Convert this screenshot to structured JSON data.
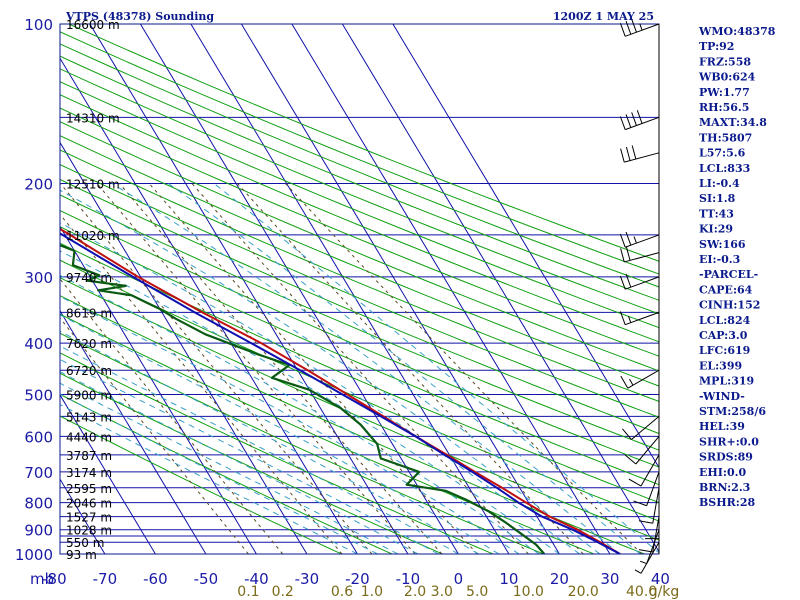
{
  "header": {
    "station": "VTPS (48378) Sounding",
    "time": "1200Z  1 MAY 25"
  },
  "units": {
    "pressure": "mb",
    "mixing_ratio": "g/kg"
  },
  "colors": {
    "frame": "#0a1a8c",
    "isobar": "#1212a8",
    "isotherm": "#1212a8",
    "dry_adiabat": "#12a012",
    "mixing_ratio": "#5a4a20",
    "moist_adiabat": "#3aa0c8",
    "temperature": "#c01010",
    "parcel": "#1010b0",
    "dewpoint": "#0a5a14",
    "wind": "#000000"
  },
  "chart_data": {
    "type": "skew-t",
    "title": "VTPS (48378) Sounding",
    "pressure_levels_mb": [
      100,
      200,
      300,
      400,
      500,
      600,
      700,
      800,
      900,
      1000
    ],
    "pressure_lines_mb": [
      100,
      150,
      200,
      250,
      300,
      350,
      400,
      450,
      500,
      550,
      600,
      650,
      700,
      750,
      800,
      850,
      900,
      925,
      950,
      1000
    ],
    "temperature_ticks_c": [
      -80,
      -70,
      -60,
      -50,
      -40,
      -30,
      -20,
      -10,
      0,
      10,
      20,
      30,
      40
    ],
    "mixing_ratio_ticks_gkg": [
      "0.1",
      "0.2",
      "0.6",
      "1.0",
      "2.0",
      "3.0",
      "5.0",
      "10.0",
      "20.0",
      "40.0"
    ],
    "mixing_ratio_values": [
      0.1,
      0.2,
      0.6,
      1.0,
      2.0,
      3.0,
      5.0,
      10.0,
      20.0,
      40.0
    ],
    "height_labels": [
      {
        "p": 100,
        "text": "16600 m"
      },
      {
        "p": 150,
        "text": "14310 m"
      },
      {
        "p": 200,
        "text": "12510 m"
      },
      {
        "p": 250,
        "text": "11020 m"
      },
      {
        "p": 300,
        "text": "9740 m"
      },
      {
        "p": 350,
        "text": "8619 m"
      },
      {
        "p": 400,
        "text": "7620 m"
      },
      {
        "p": 450,
        "text": "6720 m"
      },
      {
        "p": 500,
        "text": "5900 m"
      },
      {
        "p": 550,
        "text": "5143 m"
      },
      {
        "p": 600,
        "text": "4440 m"
      },
      {
        "p": 650,
        "text": "3787 m"
      },
      {
        "p": 700,
        "text": "3174 m"
      },
      {
        "p": 750,
        "text": "2595 m"
      },
      {
        "p": 800,
        "text": "2046 m"
      },
      {
        "p": 850,
        "text": "1527 m"
      },
      {
        "p": 900,
        "text": "1028 m"
      },
      {
        "p": 950,
        "text": "550 m"
      },
      {
        "p": 1000,
        "text": "93 m"
      }
    ],
    "series": [
      {
        "name": "Temperature",
        "points": [
          [
            100,
            -82
          ],
          [
            120,
            -74
          ],
          [
            150,
            -63
          ],
          [
            200,
            -50
          ],
          [
            250,
            -39
          ],
          [
            300,
            -30.5
          ],
          [
            350,
            -22
          ],
          [
            400,
            -14
          ],
          [
            450,
            -8
          ],
          [
            500,
            -3
          ],
          [
            550,
            1.5
          ],
          [
            600,
            5.5
          ],
          [
            650,
            9.5
          ],
          [
            700,
            13
          ],
          [
            750,
            16.5
          ],
          [
            800,
            19.5
          ],
          [
            850,
            22.5
          ],
          [
            900,
            26.5
          ],
          [
            950,
            29.5
          ],
          [
            1000,
            32
          ]
        ]
      },
      {
        "name": "Parcel",
        "points": [
          [
            125,
            -80
          ],
          [
            150,
            -68
          ],
          [
            200,
            -52
          ],
          [
            250,
            -40.5
          ],
          [
            300,
            -31.5
          ],
          [
            350,
            -23.5
          ],
          [
            400,
            -16
          ],
          [
            450,
            -9.5
          ],
          [
            500,
            -4
          ],
          [
            550,
            1
          ],
          [
            600,
            5.5
          ],
          [
            650,
            9
          ],
          [
            700,
            12.5
          ],
          [
            750,
            15.5
          ],
          [
            800,
            18
          ],
          [
            850,
            21
          ],
          [
            900,
            25.5
          ],
          [
            950,
            29
          ],
          [
            1000,
            32
          ]
        ]
      },
      {
        "name": "Dewpoint",
        "points": [
          [
            120,
            -80
          ],
          [
            150,
            -73
          ],
          [
            180,
            -68
          ],
          [
            200,
            -60
          ],
          [
            220,
            -51
          ],
          [
            240,
            -48
          ],
          [
            250,
            -46
          ],
          [
            262,
            -42
          ],
          [
            268,
            -40
          ],
          [
            285,
            -42
          ],
          [
            298,
            -38
          ],
          [
            305,
            -41
          ],
          [
            312,
            -34
          ],
          [
            318,
            -40
          ],
          [
            325,
            -34
          ],
          [
            335,
            -32
          ],
          [
            345,
            -30
          ],
          [
            360,
            -28
          ],
          [
            385,
            -24
          ],
          [
            420,
            -16
          ],
          [
            440,
            -11
          ],
          [
            465,
            -16
          ],
          [
            490,
            -10
          ],
          [
            530,
            -6
          ],
          [
            570,
            -4
          ],
          [
            620,
            -3
          ],
          [
            660,
            -4
          ],
          [
            700,
            2
          ],
          [
            740,
            -2
          ],
          [
            760,
            5
          ],
          [
            790,
            8
          ],
          [
            830,
            11
          ],
          [
            870,
            13
          ],
          [
            920,
            15
          ],
          [
            960,
            16.5
          ],
          [
            1000,
            17
          ]
        ]
      }
    ],
    "wind_barbs": [
      {
        "p": 100,
        "dir": 250,
        "spd": 35
      },
      {
        "p": 150,
        "dir": 250,
        "spd": 40
      },
      {
        "p": 175,
        "dir": 255,
        "spd": 30
      },
      {
        "p": 250,
        "dir": 250,
        "spd": 25
      },
      {
        "p": 270,
        "dir": 255,
        "spd": 20
      },
      {
        "p": 300,
        "dir": 250,
        "spd": 20
      },
      {
        "p": 350,
        "dir": 250,
        "spd": 15
      },
      {
        "p": 450,
        "dir": 240,
        "spd": 15
      },
      {
        "p": 550,
        "dir": 230,
        "spd": 10
      },
      {
        "p": 600,
        "dir": 220,
        "spd": 10
      },
      {
        "p": 650,
        "dir": 210,
        "spd": 10
      },
      {
        "p": 700,
        "dir": 200,
        "spd": 10
      },
      {
        "p": 750,
        "dir": 190,
        "spd": 10
      },
      {
        "p": 800,
        "dir": 180,
        "spd": 10
      },
      {
        "p": 850,
        "dir": 190,
        "spd": 10
      },
      {
        "p": 900,
        "dir": 200,
        "spd": 5
      },
      {
        "p": 950,
        "dir": 210,
        "spd": 5
      }
    ]
  },
  "indices": [
    "WMO:48378",
    "TP:92",
    "FRZ:558",
    "WB0:624",
    "PW:1.77",
    "RH:56.5",
    "MAXT:34.8",
    "TH:5807",
    "L57:5.6",
    "LCL:833",
    "LI:-0.4",
    "SI:1.8",
    "TT:43",
    "KI:29",
    "SW:166",
    "EI:-0.3",
    "-PARCEL-",
    "CAPE:64",
    "CINH:152",
    "LCL:824",
    "CAP:3.0",
    "LFC:619",
    "EL:399",
    "MPL:319",
    "-WIND-",
    "STM:258/6",
    "HEL:39",
    "SHR+:0.0",
    "SRDS:89",
    "EHI:0.0",
    "BRN:2.3",
    "BSHR:28"
  ]
}
